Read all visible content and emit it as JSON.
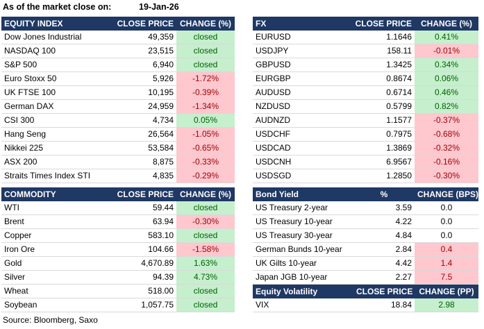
{
  "header": {
    "label": "As of the market close on:",
    "date": "19-Jan-26"
  },
  "equity": {
    "headers": [
      "EQUITY INDEX",
      "CLOSE PRICE",
      "CHANGE (%)"
    ],
    "rows": [
      {
        "name": "Dow Jones Industrial",
        "price": "49,359",
        "change": "closed",
        "status": "green"
      },
      {
        "name": "NASDAQ 100",
        "price": "23,515",
        "change": "closed",
        "status": "green"
      },
      {
        "name": "S&P 500",
        "price": "6,940",
        "change": "closed",
        "status": "green"
      },
      {
        "name": "Euro Stoxx 50",
        "price": "5,926",
        "change": "-1.72%",
        "status": "red"
      },
      {
        "name": "UK FTSE 100",
        "price": "10,195",
        "change": "-0.39%",
        "status": "red"
      },
      {
        "name": "German DAX",
        "price": "24,959",
        "change": "-1.34%",
        "status": "red"
      },
      {
        "name": "CSI 300",
        "price": "4,734",
        "change": "0.05%",
        "status": "green"
      },
      {
        "name": "Hang Seng",
        "price": "26,564",
        "change": "-1.05%",
        "status": "red"
      },
      {
        "name": "Nikkei 225",
        "price": "53,584",
        "change": "-0.65%",
        "status": "red"
      },
      {
        "name": "ASX 200",
        "price": "8,875",
        "change": "-0.33%",
        "status": "red"
      },
      {
        "name": "Straits Times Index STI",
        "price": "4,835",
        "change": "-0.29%",
        "status": "red"
      }
    ]
  },
  "fx": {
    "headers": [
      "FX",
      "CLOSE PRICE",
      "CHANGE (%)"
    ],
    "rows": [
      {
        "name": "EURUSD",
        "price": "1.1646",
        "change": "0.41%",
        "status": "green"
      },
      {
        "name": "USDJPY",
        "price": "158.11",
        "change": "-0.01%",
        "status": "red"
      },
      {
        "name": "GBPUSD",
        "price": "1.3425",
        "change": "0.34%",
        "status": "green"
      },
      {
        "name": "EURGBP",
        "price": "0.8674",
        "change": "0.06%",
        "status": "green"
      },
      {
        "name": "AUDUSD",
        "price": "0.6714",
        "change": "0.46%",
        "status": "green"
      },
      {
        "name": "NZDUSD",
        "price": "0.5799",
        "change": "0.82%",
        "status": "green"
      },
      {
        "name": "AUDNZD",
        "price": "1.1577",
        "change": "-0.37%",
        "status": "red"
      },
      {
        "name": "USDCHF",
        "price": "0.7975",
        "change": "-0.68%",
        "status": "red"
      },
      {
        "name": "USDCAD",
        "price": "1.3869",
        "change": "-0.32%",
        "status": "red"
      },
      {
        "name": "USDCNH",
        "price": "6.9567",
        "change": "-0.16%",
        "status": "red"
      },
      {
        "name": "USDSGD",
        "price": "1.2850",
        "change": "-0.30%",
        "status": "red"
      }
    ]
  },
  "commodity": {
    "headers": [
      "COMMODITY",
      "CLOSE PRICE",
      "CHANGE (%)"
    ],
    "rows": [
      {
        "name": "WTI",
        "price": "59.44",
        "change": "closed",
        "status": "green"
      },
      {
        "name": "Brent",
        "price": "63.94",
        "change": "-0.30%",
        "status": "red"
      },
      {
        "name": "Copper",
        "price": "583.10",
        "change": "closed",
        "status": "green"
      },
      {
        "name": "Iron Ore",
        "price": "104.66",
        "change": "-1.58%",
        "status": "red"
      },
      {
        "name": "Gold",
        "price": "4,670.89",
        "change": "1.63%",
        "status": "green"
      },
      {
        "name": "Silver",
        "price": "94.39",
        "change": "4.73%",
        "status": "green"
      },
      {
        "name": "Wheat",
        "price": "518.00",
        "change": "closed",
        "status": "green"
      },
      {
        "name": "Soybean",
        "price": "1,057.75",
        "change": "closed",
        "status": "green"
      }
    ]
  },
  "bonds": {
    "headers": [
      "Bond Yield",
      "%",
      "CHANGE (BPS)"
    ],
    "rows": [
      {
        "name": "US Treasury 2-year",
        "price": "3.59",
        "change": "0.0",
        "status": "neutral"
      },
      {
        "name": "US Treasury 10-year",
        "price": "4.22",
        "change": "0.0",
        "status": "neutral"
      },
      {
        "name": "US Treasury 30-year",
        "price": "4.84",
        "change": "0.0",
        "status": "neutral"
      },
      {
        "name": "German Bunds 10-year",
        "price": "2.84",
        "change": "0.4",
        "status": "red"
      },
      {
        "name": "UK Gilts 10-year",
        "price": "4.42",
        "change": "1.4",
        "status": "red"
      },
      {
        "name": "Japan JGB 10-year",
        "price": "2.27",
        "change": "7.5",
        "status": "red"
      }
    ]
  },
  "volatility": {
    "headers": [
      "Equity Volatility",
      "CLOSE PRICE",
      "CHANGE (PP)"
    ],
    "rows": [
      {
        "name": "VIX",
        "price": "18.84",
        "change": "2.98",
        "status": "green"
      }
    ]
  },
  "footer": {
    "source": "Source: Bloomberg, Saxo"
  }
}
